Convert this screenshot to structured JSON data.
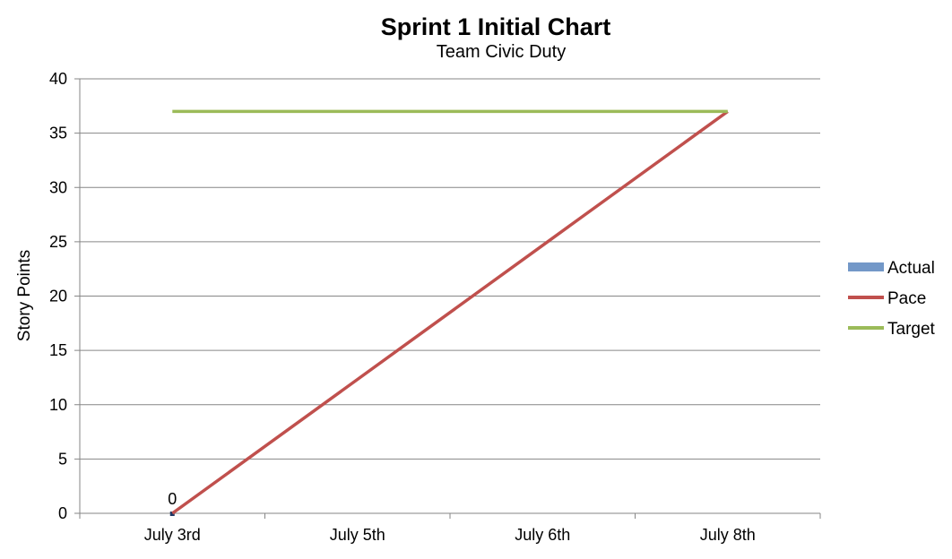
{
  "chart_data": {
    "type": "line",
    "title": "Sprint 1 Initial Chart",
    "subtitle": "Team Civic Duty",
    "xlabel": "",
    "ylabel": "Story Points",
    "categories": [
      "July 3rd",
      "July 5th",
      "July 6th",
      "July 8th"
    ],
    "ylim": [
      0,
      40
    ],
    "yticks": [
      0,
      5,
      10,
      15,
      20,
      25,
      30,
      35,
      40
    ],
    "grid": true,
    "legend_position": "right",
    "series": [
      {
        "name": "Actual",
        "kind": "bar",
        "color": "#7398c8",
        "values": [
          0,
          null,
          null,
          null
        ],
        "data_labels": [
          "0",
          null,
          null,
          null
        ]
      },
      {
        "name": "Pace",
        "kind": "line",
        "color": "#c0504d",
        "values": [
          0,
          12.33,
          24.67,
          37
        ]
      },
      {
        "name": "Target",
        "kind": "line",
        "color": "#9bbb59",
        "values": [
          37,
          37,
          37,
          37
        ]
      }
    ]
  }
}
